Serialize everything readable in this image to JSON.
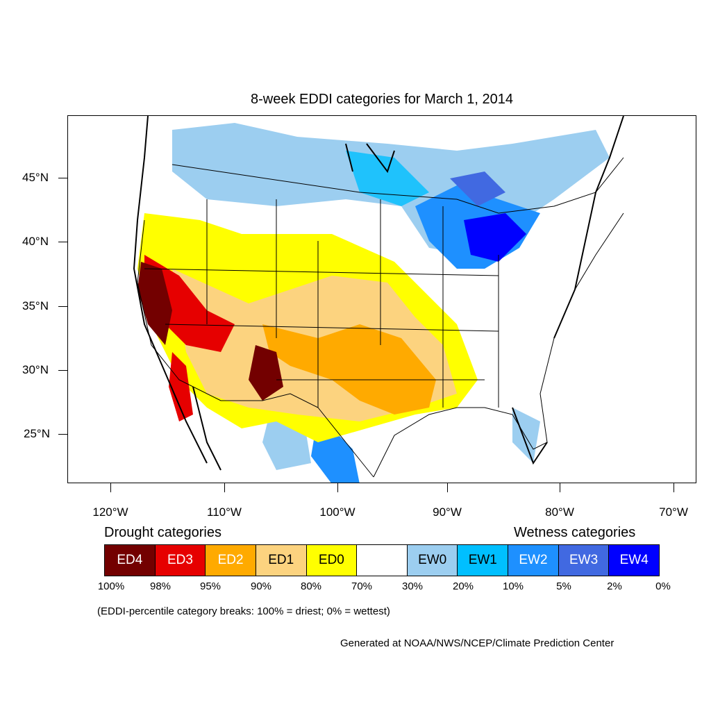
{
  "title": "8-week EDDI categories for March 1, 2014",
  "map": {
    "lat_labels": [
      "45°N",
      "40°N",
      "35°N",
      "30°N",
      "25°N"
    ],
    "lon_labels": [
      "120°W",
      "110°W",
      "100°W",
      "90°W",
      "80°W",
      "70°W"
    ]
  },
  "legend": {
    "drought_heading": "Drought categories",
    "wetness_heading": "Wetness categories",
    "categories": [
      {
        "label": "ED4",
        "color": "#730000",
        "text_color": "#ffffff"
      },
      {
        "label": "ED3",
        "color": "#e60000",
        "text_color": "#ffffff"
      },
      {
        "label": "ED2",
        "color": "#ffaa00",
        "text_color": "#ffffff"
      },
      {
        "label": "ED1",
        "color": "#fcd37f",
        "text_color": "#000000"
      },
      {
        "label": "ED0",
        "color": "#ffff00",
        "text_color": "#000000"
      },
      {
        "label": "",
        "color": "#ffffff",
        "text_color": "#000000"
      },
      {
        "label": "EW0",
        "color": "#9ccef0",
        "text_color": "#000000"
      },
      {
        "label": "EW1",
        "color": "#00bfff",
        "text_color": "#000000"
      },
      {
        "label": "EW2",
        "color": "#1e90ff",
        "text_color": "#ffffff"
      },
      {
        "label": "EW3",
        "color": "#4169e1",
        "text_color": "#ffffff"
      },
      {
        "label": "EW4",
        "color": "#0000ff",
        "text_color": "#ffffff"
      }
    ],
    "breaks": [
      "100%",
      "98%",
      "95%",
      "90%",
      "80%",
      "70%",
      "30%",
      "20%",
      "10%",
      "5%",
      "2%",
      "0%"
    ],
    "note": "(EDDI-percentile category breaks: 100% = driest; 0% = wettest)"
  },
  "credit": "Generated at NOAA/NWS/NCEP/Climate Prediction Center"
}
